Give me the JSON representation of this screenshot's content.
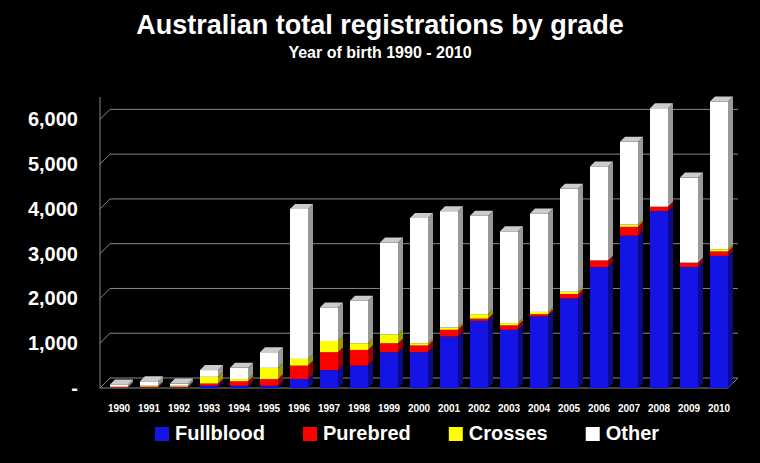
{
  "chart_data": {
    "type": "bar",
    "title": "Australian total registrations by grade",
    "subtitle": "Year of birth 1990 - 2010",
    "categories": [
      "1990",
      "1991",
      "1992",
      "1993",
      "1994",
      "1995",
      "1996",
      "1997",
      "1998",
      "1999",
      "2000",
      "2001",
      "2002",
      "2003",
      "2004",
      "2005",
      "2006",
      "2007",
      "2008",
      "2009",
      "2010"
    ],
    "series": [
      {
        "name": "Fullblood",
        "color": "#1414e6",
        "values": [
          5,
          10,
          10,
          50,
          50,
          50,
          200,
          400,
          500,
          800,
          800,
          1150,
          1500,
          1300,
          1600,
          2000,
          2700,
          3400,
          3950,
          2700,
          2950
        ]
      },
      {
        "name": "Purebred",
        "color": "#ff0000",
        "values": [
          15,
          20,
          20,
          50,
          100,
          150,
          300,
          400,
          350,
          200,
          150,
          150,
          50,
          100,
          50,
          100,
          150,
          200,
          100,
          100,
          100
        ]
      },
      {
        "name": "Crosses",
        "color": "#ffff00",
        "values": [
          10,
          20,
          20,
          150,
          50,
          250,
          150,
          250,
          150,
          200,
          50,
          50,
          100,
          50,
          50,
          50,
          0,
          50,
          0,
          0,
          50
        ]
      },
      {
        "name": "Other",
        "color": "#ffffff",
        "values": [
          50,
          100,
          50,
          150,
          250,
          350,
          3350,
          750,
          950,
          2050,
          2800,
          2600,
          2200,
          2050,
          2200,
          2300,
          2100,
          1850,
          2200,
          1900,
          3300
        ]
      }
    ],
    "ylim": [
      0,
      6500
    ],
    "yticks": [
      {
        "value": 0,
        "label": "-"
      },
      {
        "value": 1000,
        "label": "1,000"
      },
      {
        "value": 2000,
        "label": "2,000"
      },
      {
        "value": 3000,
        "label": "3,000"
      },
      {
        "value": 4000,
        "label": "4,000"
      },
      {
        "value": 5000,
        "label": "5,000"
      },
      {
        "value": 6000,
        "label": "6,000"
      }
    ],
    "grid": true,
    "stacked": true,
    "legend": "bottom"
  }
}
